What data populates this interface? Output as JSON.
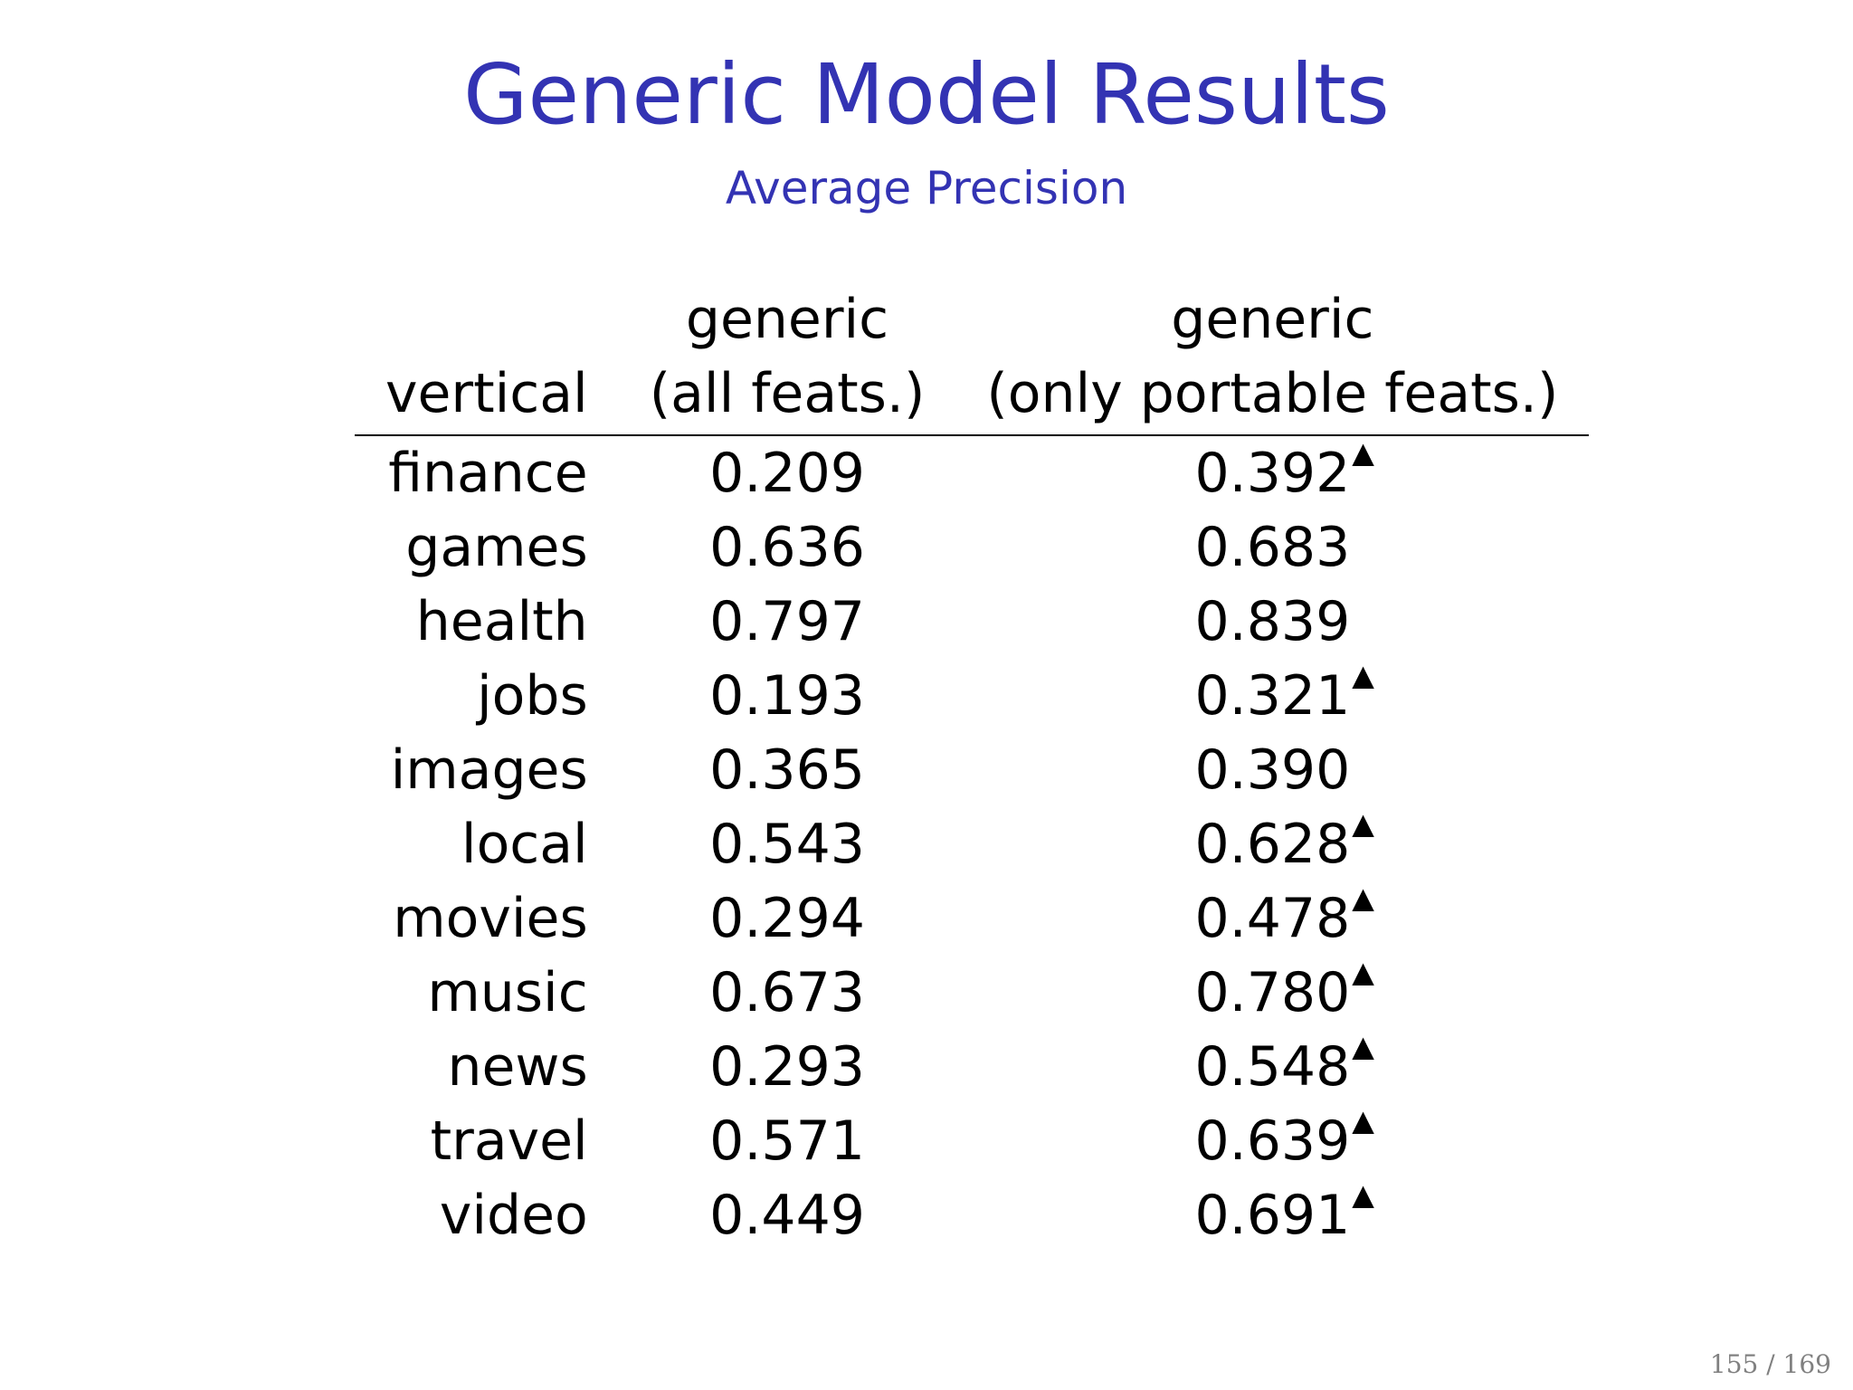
{
  "slide": {
    "title": "Generic Model Results",
    "subtitle": "Average Precision",
    "page": "155 / 169",
    "accent_color": "#3333b3"
  },
  "table": {
    "headers": {
      "vertical": "vertical",
      "all_top": "generic",
      "all_bottom": "(all feats.)",
      "portable_top": "generic",
      "portable_bottom": "(only portable feats.)"
    },
    "significance_marker": "▲",
    "rows": [
      {
        "vertical": "finance",
        "all": "0.209",
        "portable": "0.392",
        "significant": true
      },
      {
        "vertical": "games",
        "all": "0.636",
        "portable": "0.683",
        "significant": false
      },
      {
        "vertical": "health",
        "all": "0.797",
        "portable": "0.839",
        "significant": false
      },
      {
        "vertical": "jobs",
        "all": "0.193",
        "portable": "0.321",
        "significant": true
      },
      {
        "vertical": "images",
        "all": "0.365",
        "portable": "0.390",
        "significant": false
      },
      {
        "vertical": "local",
        "all": "0.543",
        "portable": "0.628",
        "significant": true
      },
      {
        "vertical": "movies",
        "all": "0.294",
        "portable": "0.478",
        "significant": true
      },
      {
        "vertical": "music",
        "all": "0.673",
        "portable": "0.780",
        "significant": true
      },
      {
        "vertical": "news",
        "all": "0.293",
        "portable": "0.548",
        "significant": true
      },
      {
        "vertical": "travel",
        "all": "0.571",
        "portable": "0.639",
        "significant": true
      },
      {
        "vertical": "video",
        "all": "0.449",
        "portable": "0.691",
        "significant": true
      }
    ]
  }
}
